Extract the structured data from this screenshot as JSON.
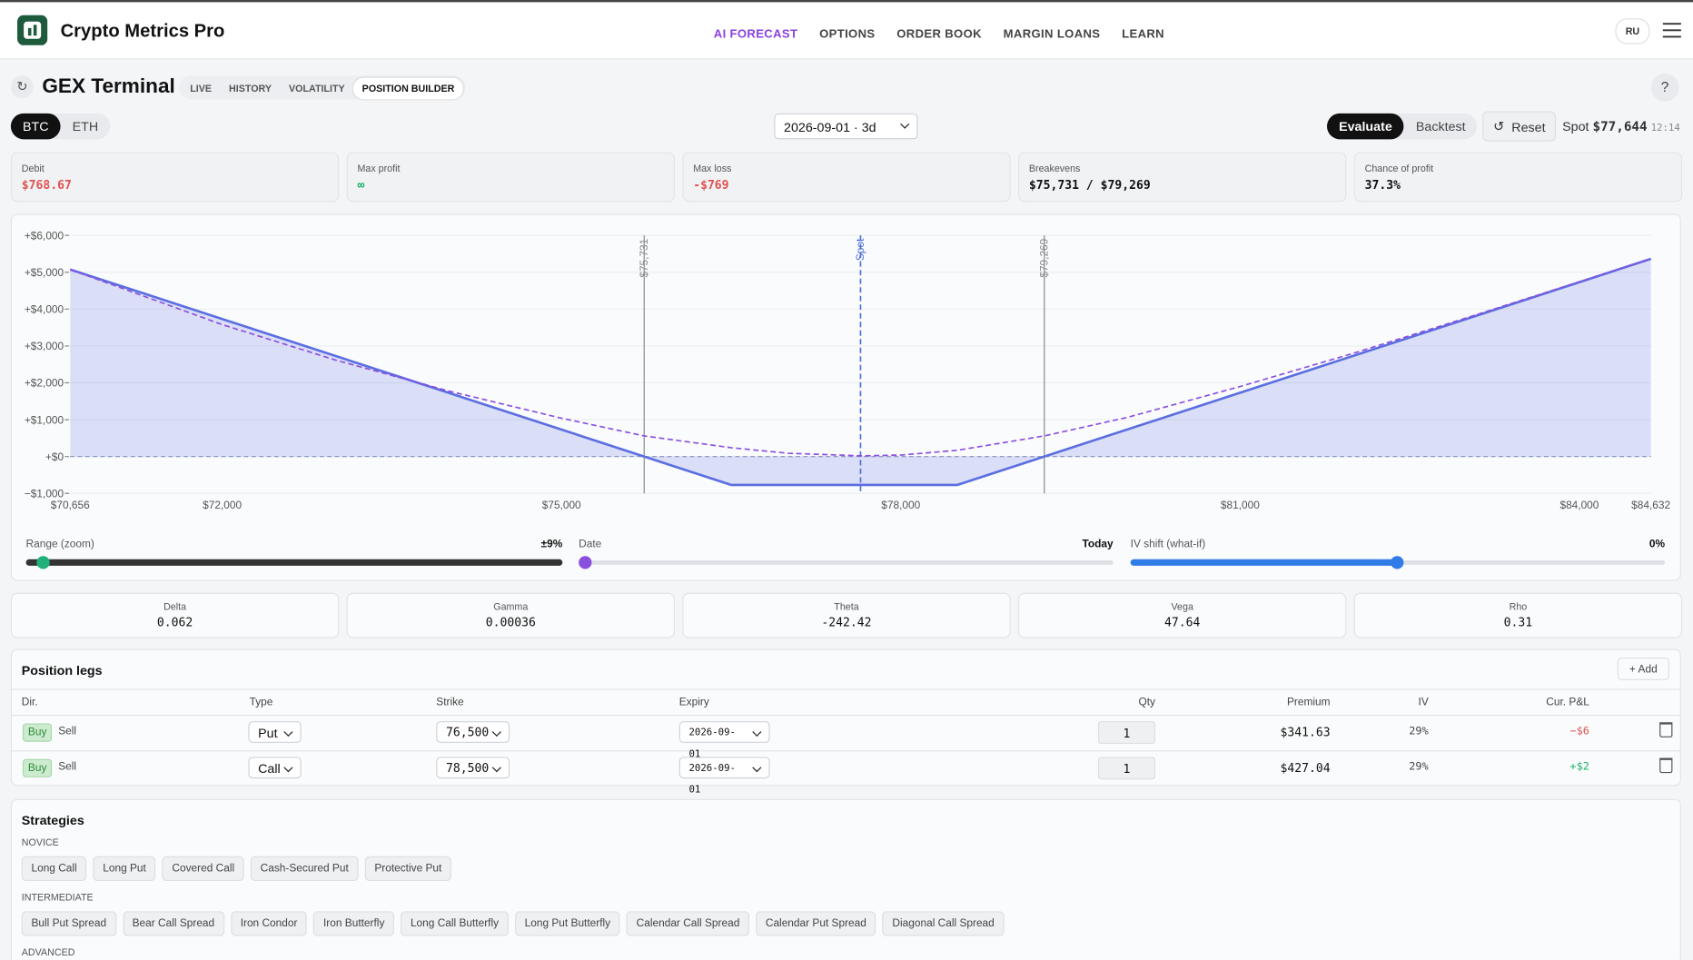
{
  "header": {
    "brand": "Crypto Metrics Pro",
    "nav": [
      "AI FORECAST",
      "OPTIONS",
      "ORDER BOOK",
      "MARGIN LOANS",
      "LEARN"
    ],
    "lang": "RU"
  },
  "toolbar": {
    "title": "GEX Terminal",
    "tabs": [
      "LIVE",
      "HISTORY",
      "VOLATILITY",
      "POSITION BUILDER"
    ],
    "help": "?"
  },
  "controls": {
    "assets": [
      "BTC",
      "ETH"
    ],
    "expiry": "2026-09-01 · 3d",
    "modes": [
      "Evaluate",
      "Backtest"
    ],
    "reset": "Reset",
    "spot_label": "Spot",
    "spot": "$77,644",
    "time": "12:14"
  },
  "metrics": [
    {
      "label": "Debit",
      "value": "$768.67"
    },
    {
      "label": "Max profit",
      "value": "∞"
    },
    {
      "label": "Max loss",
      "value": "-$769"
    },
    {
      "label": "Breakevens",
      "value": "$75,731 / $79,269"
    },
    {
      "label": "Chance of profit",
      "value": "37.3%"
    }
  ],
  "chart_data": {
    "type": "line",
    "xlim": [
      70656,
      84632
    ],
    "xticks": [
      {
        "value": 70656,
        "label": "$70,656"
      },
      {
        "value": 72000,
        "label": "$72,000"
      },
      {
        "value": 75000,
        "label": "$75,000"
      },
      {
        "value": 78000,
        "label": "$78,000"
      },
      {
        "value": 81000,
        "label": "$81,000"
      },
      {
        "value": 84000,
        "label": "$84,000"
      },
      {
        "value": 84632,
        "label": "$84,632"
      }
    ],
    "ylim": [
      -1000,
      6000
    ],
    "yticks": [
      {
        "value": -1000,
        "label": "−$1,000"
      },
      {
        "value": 0,
        "label": "+$0"
      },
      {
        "value": 1000,
        "label": "+$1,000"
      },
      {
        "value": 2000,
        "label": "+$2,000"
      },
      {
        "value": 3000,
        "label": "+$3,000"
      },
      {
        "value": 4000,
        "label": "+$4,000"
      },
      {
        "value": 5000,
        "label": "+$5,000"
      },
      {
        "value": 6000,
        "label": "+$6,000"
      }
    ],
    "grid": true,
    "series": [
      {
        "color": "#5b6ee1",
        "fill": true,
        "dashed": false,
        "x": [
          70656,
          76500,
          78500,
          84632
        ],
        "values": [
          5075,
          -769,
          -769,
          5363
        ]
      },
      {
        "color": "#8b4fe0",
        "fill": false,
        "dashed": true,
        "x": [
          70656,
          72000,
          73000,
          74000,
          75000,
          75731,
          76500,
          77000,
          77644,
          78000,
          78500,
          79269,
          80000,
          81000,
          82000,
          83000,
          84632
        ],
        "values": [
          5075,
          3580,
          2620,
          1780,
          1040,
          560,
          240,
          90,
          20,
          40,
          170,
          560,
          1060,
          1900,
          2800,
          3760,
          5363
        ]
      }
    ],
    "markers": [
      {
        "value": 75731,
        "label": "$75,731"
      },
      {
        "value": 77644,
        "label": "Spot"
      },
      {
        "value": 79269,
        "label": "$79,269"
      }
    ]
  },
  "sliders": [
    {
      "label": "Range (zoom)",
      "value": "±9%"
    },
    {
      "label": "Date",
      "value": "Today"
    },
    {
      "label": "IV shift (what-if)",
      "value": "0%"
    }
  ],
  "greeks": [
    {
      "label": "Delta",
      "value": "0.062"
    },
    {
      "label": "Gamma",
      "value": "0.00036"
    },
    {
      "label": "Theta",
      "value": "-242.42"
    },
    {
      "label": "Vega",
      "value": "47.64"
    },
    {
      "label": "Rho",
      "value": "0.31"
    }
  ],
  "legs": {
    "title": "Position legs",
    "add": "Add",
    "columns": [
      "Dir.",
      "Type",
      "Strike",
      "Expiry",
      "Qty",
      "Premium",
      "IV",
      "Cur. P&L"
    ],
    "rows": [
      {
        "buy": "Buy",
        "sell": "Sell",
        "type": "Put",
        "strike": "76,500",
        "expiry": "2026-09-01",
        "qty": "1",
        "premium": "$341.63",
        "iv": "29%",
        "pnl": "−$6"
      },
      {
        "buy": "Buy",
        "sell": "Sell",
        "type": "Call",
        "strike": "78,500",
        "expiry": "2026-09-01",
        "qty": "1",
        "premium": "$427.04",
        "iv": "29%",
        "pnl": "+$2"
      }
    ]
  },
  "strategies": {
    "title": "Strategies",
    "groups": [
      {
        "name": "NOVICE",
        "items": [
          "Long Call",
          "Long Put",
          "Covered Call",
          "Cash-Secured Put",
          "Protective Put"
        ]
      },
      {
        "name": "INTERMEDIATE",
        "items": [
          "Bull Put Spread",
          "Bear Call Spread",
          "Iron Condor",
          "Iron Butterfly",
          "Long Call Butterfly",
          "Long Put Butterfly",
          "Calendar Call Spread",
          "Calendar Put Spread",
          "Diagonal Call Spread"
        ]
      },
      {
        "name": "ADVANCED",
        "items": []
      }
    ]
  }
}
